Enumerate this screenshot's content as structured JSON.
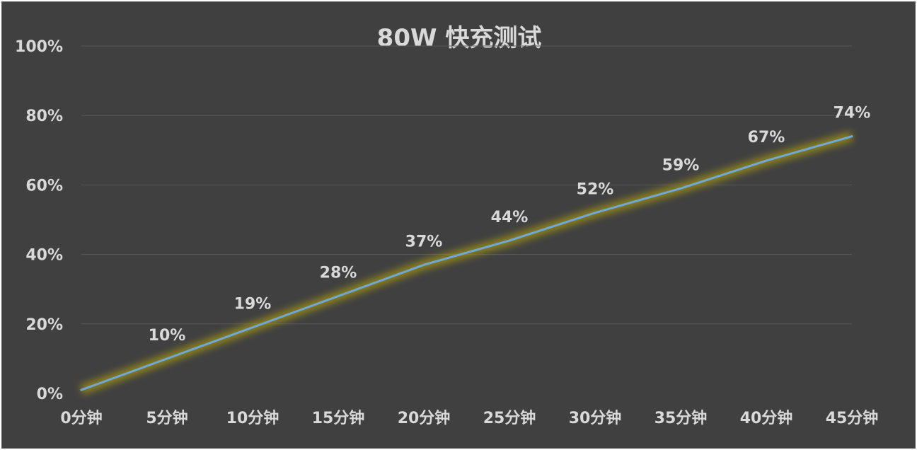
{
  "chart_data": {
    "type": "line",
    "title": "80W 快充测试",
    "categories": [
      "0分钟",
      "5分钟",
      "10分钟",
      "15分钟",
      "20分钟",
      "25分钟",
      "30分钟",
      "35分钟",
      "40分钟",
      "45分钟"
    ],
    "series": [
      {
        "values": [
          1,
          10,
          19,
          28,
          37,
          44,
          52,
          59,
          67,
          74
        ],
        "data_labels": [
          "",
          "10%",
          "19%",
          "28%",
          "37%",
          "44%",
          "52%",
          "59%",
          "67%",
          "74%"
        ],
        "color": "#6fa8d8",
        "glow_color": "#c8b400"
      }
    ],
    "y_ticks": [
      "0%",
      "20%",
      "40%",
      "60%",
      "80%",
      "100%"
    ],
    "ylim": [
      0,
      100
    ],
    "grid": true,
    "legend": "none",
    "colors": {
      "background": "#404040",
      "gridline": "#595959",
      "text": "#d9d9d9"
    }
  }
}
